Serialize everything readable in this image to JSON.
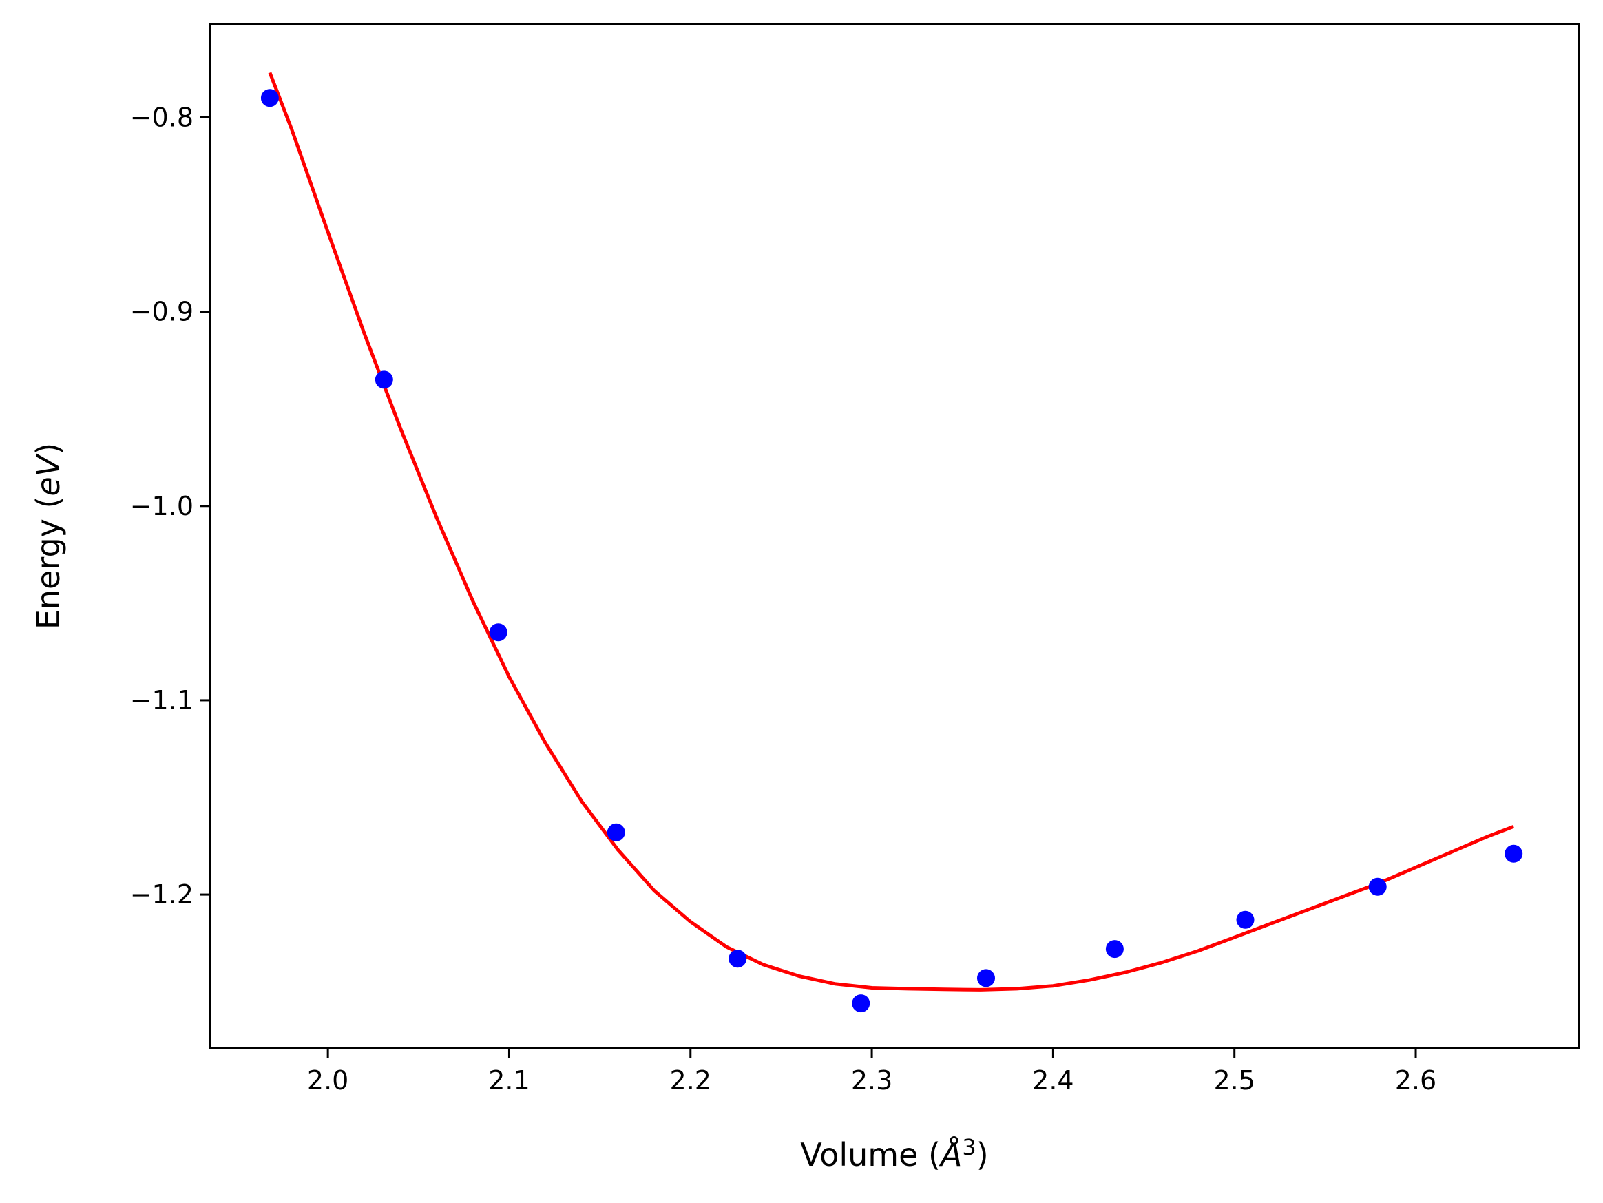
{
  "chart_data": {
    "type": "scatter",
    "title": "",
    "xlabel": {
      "pre": "Volume (",
      "symbol": "Å",
      "sup": "3",
      "post": ")"
    },
    "ylabel": {
      "pre": "Energy (",
      "symbol": "eV",
      "post": ")"
    },
    "xlim": [
      1.935,
      2.69
    ],
    "ylim": [
      -1.279,
      -0.752
    ],
    "xticks": [
      2.0,
      2.1,
      2.2,
      2.3,
      2.4,
      2.5,
      2.6
    ],
    "xtick_labels": [
      "2.0",
      "2.1",
      "2.2",
      "2.3",
      "2.4",
      "2.5",
      "2.6"
    ],
    "yticks": [
      -0.8,
      -0.9,
      -1.0,
      -1.1,
      -1.2
    ],
    "ytick_labels": [
      "−0.8",
      "−0.9",
      "−1.0",
      "−1.1",
      "−1.2"
    ],
    "grid": false,
    "legend": "none",
    "series": [
      {
        "kind": "scatter",
        "color": "#0000ff",
        "x": [
          1.968,
          2.031,
          2.094,
          2.159,
          2.226,
          2.294,
          2.363,
          2.434,
          2.506,
          2.579,
          2.654
        ],
        "y": [
          -0.79,
          -0.935,
          -1.065,
          -1.168,
          -1.233,
          -1.256,
          -1.243,
          -1.228,
          -1.213,
          -1.196,
          -1.179
        ]
      },
      {
        "kind": "line",
        "color": "#ff0000",
        "x": [
          1.968,
          1.98,
          2.0,
          2.02,
          2.04,
          2.06,
          2.08,
          2.1,
          2.12,
          2.14,
          2.16,
          2.18,
          2.2,
          2.22,
          2.24,
          2.26,
          2.28,
          2.3,
          2.32,
          2.34,
          2.36,
          2.38,
          2.4,
          2.42,
          2.44,
          2.46,
          2.48,
          2.5,
          2.52,
          2.54,
          2.56,
          2.58,
          2.6,
          2.62,
          2.64,
          2.654
        ],
        "y": [
          -0.777,
          -0.806,
          -0.859,
          -0.911,
          -0.96,
          -1.006,
          -1.049,
          -1.088,
          -1.122,
          -1.152,
          -1.177,
          -1.198,
          -1.214,
          -1.227,
          -1.236,
          -1.242,
          -1.246,
          -1.248,
          -1.2485,
          -1.2488,
          -1.249,
          -1.2485,
          -1.247,
          -1.244,
          -1.24,
          -1.235,
          -1.229,
          -1.222,
          -1.215,
          -1.208,
          -1.201,
          -1.194,
          -1.186,
          -1.178,
          -1.17,
          -1.165
        ]
      }
    ]
  }
}
